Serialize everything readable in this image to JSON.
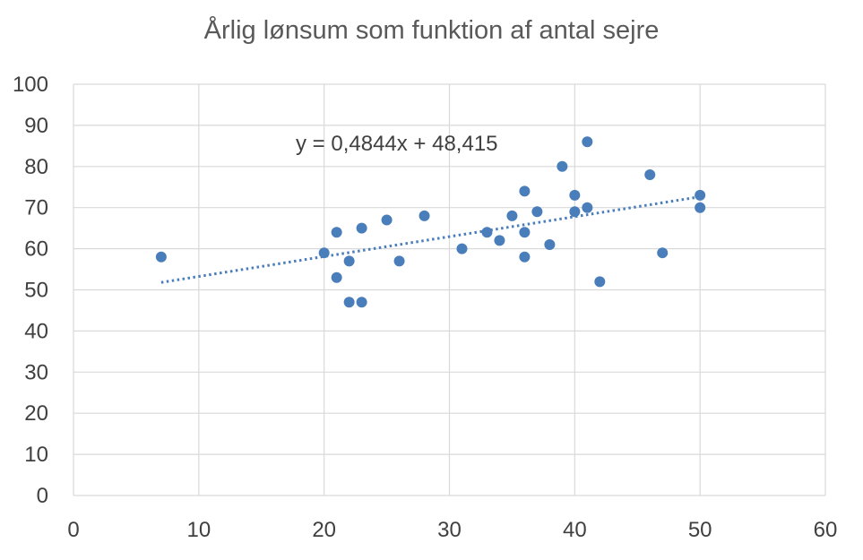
{
  "chart_data": {
    "type": "scatter",
    "title": "Årlig lønsum som funktion af antal sejre",
    "xlabel": "",
    "ylabel": "",
    "xlim": [
      0,
      60
    ],
    "ylim": [
      0,
      100
    ],
    "x_ticks": [
      0,
      10,
      20,
      30,
      40,
      50,
      60
    ],
    "y_ticks": [
      0,
      10,
      20,
      30,
      40,
      50,
      60,
      70,
      80,
      90,
      100
    ],
    "x_tick_labels": [
      "0",
      "10",
      "20",
      "30",
      "40",
      "50",
      "60"
    ],
    "y_tick_labels": [
      "0",
      "10",
      "20",
      "30",
      "40",
      "50",
      "60",
      "70",
      "80",
      "90",
      "100"
    ],
    "grid": true,
    "legend": "none",
    "marker_color": "#4a7ebb",
    "gridline_color": "#d9d9d9",
    "series": [
      {
        "points": [
          {
            "x": 7,
            "y": 58
          },
          {
            "x": 20,
            "y": 59
          },
          {
            "x": 21,
            "y": 64
          },
          {
            "x": 21,
            "y": 53
          },
          {
            "x": 22,
            "y": 57
          },
          {
            "x": 22,
            "y": 47
          },
          {
            "x": 23,
            "y": 65
          },
          {
            "x": 23,
            "y": 47
          },
          {
            "x": 25,
            "y": 67
          },
          {
            "x": 26,
            "y": 57
          },
          {
            "x": 28,
            "y": 68
          },
          {
            "x": 31,
            "y": 60
          },
          {
            "x": 33,
            "y": 64
          },
          {
            "x": 34,
            "y": 62
          },
          {
            "x": 35,
            "y": 68
          },
          {
            "x": 36,
            "y": 74
          },
          {
            "x": 36,
            "y": 64
          },
          {
            "x": 36,
            "y": 58
          },
          {
            "x": 37,
            "y": 69
          },
          {
            "x": 38,
            "y": 61
          },
          {
            "x": 39,
            "y": 80
          },
          {
            "x": 40,
            "y": 73
          },
          {
            "x": 40,
            "y": 69
          },
          {
            "x": 41,
            "y": 86
          },
          {
            "x": 41,
            "y": 70
          },
          {
            "x": 42,
            "y": 52
          },
          {
            "x": 46,
            "y": 78
          },
          {
            "x": 47,
            "y": 59
          },
          {
            "x": 50,
            "y": 73
          },
          {
            "x": 50,
            "y": 70
          }
        ]
      }
    ],
    "trendline": {
      "type": "linear",
      "slope": 0.4844,
      "intercept": 48.415,
      "x_range": [
        7,
        50
      ],
      "style": "dotted",
      "color": "#4a7ebb",
      "label": "y = 0,4844x + 48,415"
    }
  }
}
